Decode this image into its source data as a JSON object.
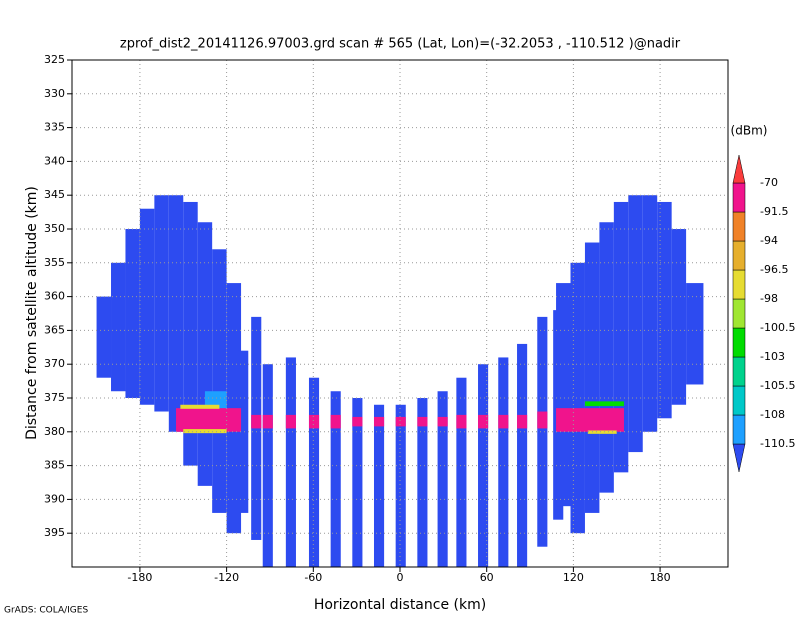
{
  "chart_data": {
    "type": "profile",
    "title": "zprof_dist2_20141126.97003.grd  scan # 565  (Lat, Lon)=(-32.2053 , -110.512 )@nadir",
    "x_label": "Horizontal distance (km)",
    "y_label": "Distance from satellite altitude (km)",
    "footer": "GrADS: COLA/IGES",
    "colorbar_label": "(dBm)",
    "xlim": [
      -227,
      227
    ],
    "xticks": [
      -180,
      -120,
      -60,
      0,
      60,
      120,
      180
    ],
    "ylim": [
      325,
      400
    ],
    "yticks": [
      325,
      330,
      335,
      340,
      345,
      350,
      355,
      360,
      365,
      370,
      375,
      380,
      385,
      390,
      395
    ],
    "y_inverted": true,
    "grid": true,
    "levels": [
      -110.5,
      -108,
      -105.5,
      -103,
      -100.5,
      -98,
      -96.5,
      -94,
      -91.5,
      -70
    ],
    "colors": [
      "#2d4bf0",
      "#1ea0ff",
      "#00c8c8",
      "#00d28c",
      "#00dc00",
      "#a0e632",
      "#e6dc32",
      "#e6af2d",
      "#f08228",
      "#f0148c",
      "#fa3c3c"
    ],
    "cells": [
      [
        -210,
        -200,
        360,
        372,
        -111
      ],
      [
        -200,
        -190,
        355,
        374,
        -111
      ],
      [
        -190,
        -180,
        350,
        375,
        -111
      ],
      [
        -180,
        -170,
        347,
        376,
        -111
      ],
      [
        -170,
        -160,
        345,
        377,
        -111
      ],
      [
        -160,
        -150,
        345,
        380,
        -111
      ],
      [
        -150,
        -140,
        346,
        385,
        -111
      ],
      [
        -140,
        -130,
        349,
        388,
        -111
      ],
      [
        -130,
        -120,
        353,
        392,
        -111
      ],
      [
        -120,
        -110,
        358,
        395,
        -111
      ],
      [
        -112,
        -105,
        368,
        392,
        -111
      ],
      [
        -103,
        -96,
        363,
        396,
        -111
      ],
      [
        -95,
        -88,
        370,
        400,
        -111
      ],
      [
        -79,
        -72,
        369,
        400,
        -111
      ],
      [
        -63,
        -56,
        372,
        400,
        -111
      ],
      [
        -48,
        -41,
        374,
        400,
        -111
      ],
      [
        -33,
        -26,
        375,
        400,
        -111
      ],
      [
        -18,
        -11,
        376,
        400,
        -111
      ],
      [
        -3,
        4,
        376,
        400,
        -111
      ],
      [
        12,
        19,
        375,
        400,
        -111
      ],
      [
        26,
        33,
        374,
        400,
        -111
      ],
      [
        39,
        46,
        372,
        400,
        -111
      ],
      [
        54,
        61,
        370,
        400,
        -111
      ],
      [
        68,
        75,
        369,
        400,
        -111
      ],
      [
        81,
        88,
        367,
        400,
        -111
      ],
      [
        95,
        102,
        363,
        397,
        -111
      ],
      [
        106,
        113,
        362,
        393,
        -111
      ],
      [
        108,
        118,
        358,
        391,
        -111
      ],
      [
        118,
        128,
        355,
        395,
        -111
      ],
      [
        128,
        138,
        352,
        392,
        -111
      ],
      [
        138,
        148,
        349,
        389,
        -111
      ],
      [
        148,
        158,
        346,
        386,
        -111
      ],
      [
        158,
        168,
        345,
        383,
        -111
      ],
      [
        168,
        178,
        345,
        380,
        -111
      ],
      [
        178,
        188,
        346,
        378,
        -111
      ],
      [
        188,
        198,
        350,
        376,
        -111
      ],
      [
        198,
        210,
        358,
        373,
        -111
      ],
      [
        -135,
        -120,
        374,
        377,
        -109
      ],
      [
        -155,
        -110,
        376.5,
        380,
        -80
      ],
      [
        -103,
        -96,
        377.5,
        379.5,
        -80
      ],
      [
        -95,
        -88,
        377.5,
        379.5,
        -80
      ],
      [
        -79,
        -72,
        377.5,
        379.5,
        -80
      ],
      [
        -63,
        -56,
        377.5,
        379.5,
        -80
      ],
      [
        -48,
        -41,
        377.5,
        379.5,
        -80
      ],
      [
        -33,
        -26,
        377.8,
        379.2,
        -80
      ],
      [
        -18,
        -11,
        377.8,
        379.2,
        -80
      ],
      [
        -3,
        4,
        377.8,
        379.2,
        -80
      ],
      [
        12,
        19,
        377.8,
        379.2,
        -80
      ],
      [
        26,
        33,
        377.8,
        379.2,
        -80
      ],
      [
        39,
        46,
        377.5,
        379.5,
        -80
      ],
      [
        54,
        61,
        377.5,
        379.5,
        -80
      ],
      [
        68,
        75,
        377.5,
        379.5,
        -80
      ],
      [
        81,
        88,
        377.5,
        379.5,
        -80
      ],
      [
        95,
        102,
        377,
        379.5,
        -80
      ],
      [
        108,
        155,
        376.5,
        380,
        -80
      ],
      [
        -152,
        -125,
        376,
        376.6,
        -97
      ],
      [
        -150,
        -120,
        379.6,
        380.2,
        -97
      ],
      [
        128,
        155,
        375.5,
        376.2,
        -101
      ],
      [
        130,
        150,
        379.8,
        380.3,
        -97
      ]
    ]
  }
}
